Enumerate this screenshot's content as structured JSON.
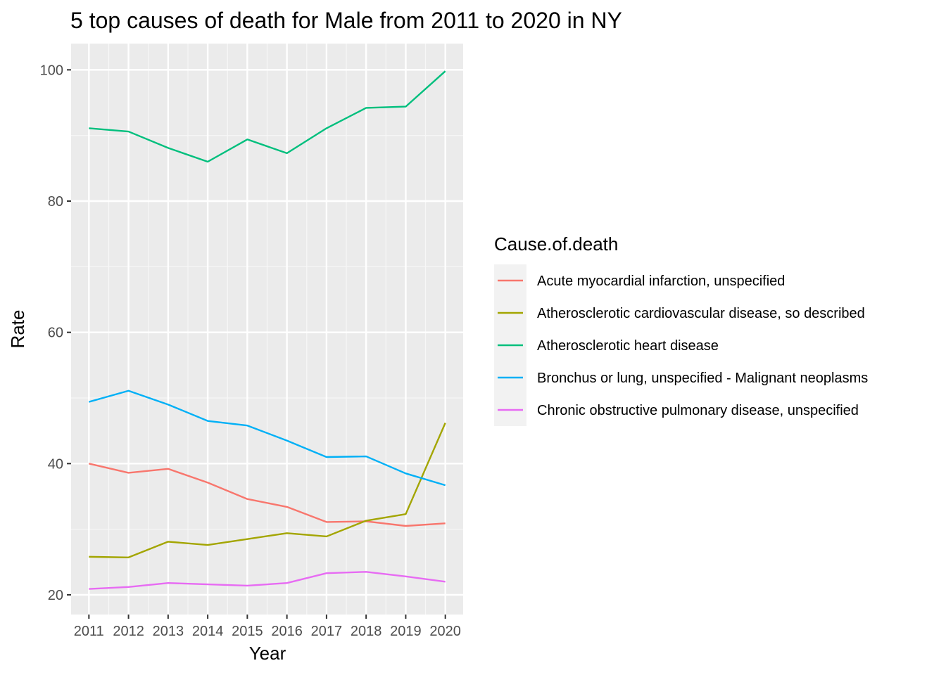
{
  "chart_data": {
    "type": "line",
    "title": "5 top causes of death for Male from 2011 to 2020 in NY",
    "xlabel": "Year",
    "ylabel": "Rate",
    "x": [
      2011,
      2012,
      2013,
      2014,
      2015,
      2016,
      2017,
      2018,
      2019,
      2020
    ],
    "x_tick_labels": [
      "2011",
      "2012",
      "2013",
      "2014",
      "2015",
      "2016",
      "2017",
      "2018",
      "2019",
      "2020"
    ],
    "ylim": [
      17,
      104
    ],
    "y_ticks": [
      20,
      40,
      60,
      80,
      100
    ],
    "y_tick_labels": [
      "20",
      "40",
      "60",
      "80",
      "100"
    ],
    "grid": true,
    "legend": {
      "title": "Cause.of.death",
      "position": "right"
    },
    "series": [
      {
        "name": "Acute myocardial infarction, unspecified",
        "color": "#F8766D",
        "values": [
          40.0,
          38.6,
          39.2,
          37.1,
          34.6,
          33.4,
          31.1,
          31.2,
          30.5,
          30.9
        ]
      },
      {
        "name": "Atherosclerotic cardiovascular disease, so described",
        "color": "#A3A500",
        "values": [
          25.8,
          25.7,
          28.1,
          27.6,
          28.5,
          29.4,
          28.9,
          31.3,
          32.3,
          46.2
        ]
      },
      {
        "name": "Atherosclerotic heart disease",
        "color": "#00BF7D",
        "values": [
          91.1,
          90.6,
          88.1,
          86.0,
          89.4,
          87.3,
          91.1,
          94.2,
          94.4,
          99.8
        ]
      },
      {
        "name": "Bronchus or lung, unspecified - Malignant neoplasms",
        "color": "#00B0F6",
        "values": [
          49.4,
          51.1,
          49.0,
          46.5,
          45.8,
          43.5,
          41.0,
          41.1,
          38.5,
          36.7
        ]
      },
      {
        "name": "Chronic obstructive pulmonary disease, unspecified",
        "color": "#E76BF3",
        "values": [
          20.9,
          21.2,
          21.8,
          21.6,
          21.4,
          21.8,
          23.3,
          23.5,
          22.8,
          22.0
        ]
      }
    ]
  }
}
